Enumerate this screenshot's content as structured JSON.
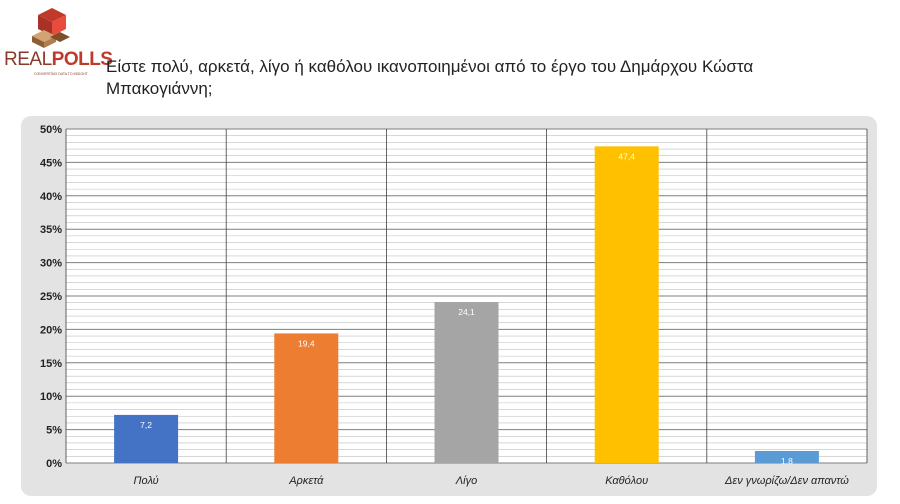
{
  "header": {
    "logo_text_left": "REAL",
    "logo_text_right": "POLLS",
    "logo_tagline": "CONVERTING DATA TO INSIGHT",
    "title": "Είστε πολύ, αρκετά, λίγο ή καθόλου ικανοποιημένοι από το έργο του Δημάρχου Κώστα Μπακογιάννη;"
  },
  "chart_data": {
    "type": "bar",
    "title": "Είστε πολύ, αρκετά, λίγο ή καθόλου ικανοποιημένοι από το έργο του Δημάρχου Κώστα Μπακογιάννη;",
    "categories": [
      "Πολύ",
      "Αρκετά",
      "Λίγο",
      "Καθόλου",
      "Δεν γνωρίζω/Δεν απαντώ"
    ],
    "values": [
      7.2,
      19.4,
      24.1,
      47.4,
      1.8
    ],
    "value_labels": [
      "7,2",
      "19,4",
      "24,1",
      "47,4",
      "1,8"
    ],
    "colors": [
      "#4472c4",
      "#ed7d31",
      "#a5a5a5",
      "#ffc000",
      "#5b9bd5"
    ],
    "yticks": [
      "0%",
      "5%",
      "10%",
      "15%",
      "20%",
      "25%",
      "30%",
      "35%",
      "40%",
      "45%",
      "50%"
    ],
    "ylim": [
      0,
      50
    ],
    "grid": true
  }
}
